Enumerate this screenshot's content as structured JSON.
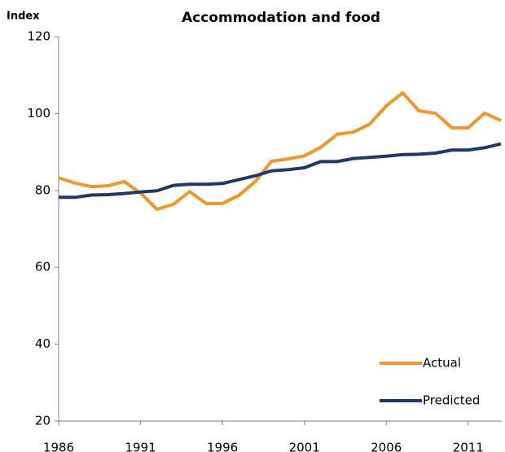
{
  "chart_data": {
    "type": "line",
    "title": "Accommodation and food",
    "ylabel": "Index",
    "x": [
      1986,
      1987,
      1988,
      1989,
      1990,
      1991,
      1992,
      1993,
      1994,
      1995,
      1996,
      1997,
      1998,
      1999,
      2000,
      2001,
      2002,
      2003,
      2004,
      2005,
      2006,
      2007,
      2008,
      2009,
      2010,
      2011,
      2012,
      2013
    ],
    "series": [
      {
        "name": "Actual",
        "color": "#f0952f",
        "values": [
          83.3,
          81.9,
          81,
          81.2,
          82.3,
          79.3,
          75.1,
          76.4,
          79.7,
          76.6,
          76.6,
          78.7,
          82.3,
          87.6,
          88.2,
          89,
          91.2,
          94.6,
          95.2,
          97.3,
          102,
          105.4,
          100.7,
          100.1,
          96.3,
          96.3,
          100.1,
          98.2
        ]
      },
      {
        "name": "Predicted",
        "color": "#1f3864",
        "values": [
          78.2,
          78.2,
          78.8,
          78.9,
          79.2,
          79.6,
          79.9,
          81.3,
          81.6,
          81.6,
          81.8,
          82.8,
          83.8,
          85.1,
          85.4,
          85.9,
          87.5,
          87.5,
          88.3,
          88.6,
          88.9,
          89.3,
          89.4,
          89.7,
          90.5,
          90.5,
          91.1,
          92.1
        ]
      }
    ],
    "xlim": [
      1986,
      2013
    ],
    "xticks": [
      1986,
      1991,
      1996,
      2001,
      2006,
      2011
    ],
    "ylim": [
      20,
      120
    ],
    "yticks": [
      20,
      40,
      60,
      80,
      100,
      120
    ],
    "legend": "lower right"
  }
}
